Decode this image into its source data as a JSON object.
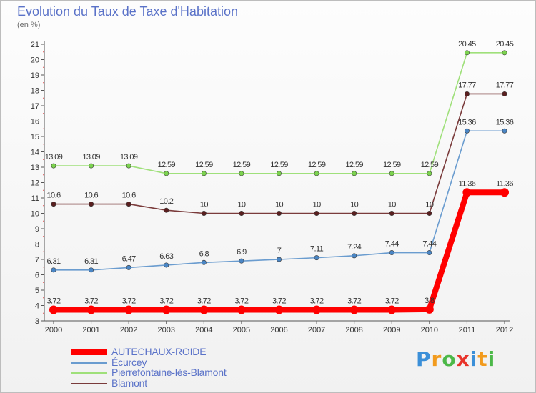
{
  "chart_data": {
    "type": "line",
    "title": "Evolution du Taux de Taxe d'Habitation",
    "subtitle": "(en %)",
    "x": [
      "2000",
      "2001",
      "2002",
      "2003",
      "2004",
      "2005",
      "2006",
      "2007",
      "2008",
      "2009",
      "2010",
      "2011",
      "2012"
    ],
    "ylim": [
      3,
      21
    ],
    "yticks": [
      3,
      4,
      5,
      6,
      7,
      8,
      9,
      10,
      11,
      12,
      13,
      14,
      15,
      16,
      17,
      18,
      19,
      20,
      21
    ],
    "grid": false,
    "legend_position": "bottom-left",
    "series": [
      {
        "name": "AUTECHAUX-ROIDE",
        "color": "#ff0000",
        "marker_color": "#ff0000",
        "values": [
          3.72,
          3.72,
          3.72,
          3.72,
          3.72,
          3.72,
          3.72,
          3.72,
          3.72,
          3.72,
          3.75,
          11.36,
          11.36
        ],
        "labels": [
          "3.72",
          "3.72",
          "3.72",
          "3.72",
          "3.72",
          "3.72",
          "3.72",
          "3.72",
          "3.72",
          "3.72",
          "3.8",
          "11.36",
          "11.36"
        ]
      },
      {
        "name": "Écurcey",
        "color": "#6a9ccf",
        "marker_color": "#4a86c5",
        "values": [
          6.31,
          6.31,
          6.47,
          6.63,
          6.8,
          6.9,
          7,
          7.11,
          7.24,
          7.44,
          7.44,
          15.36,
          15.36
        ],
        "labels": [
          "6.31",
          "6.31",
          "6.47",
          "6.63",
          "6.8",
          "6.9",
          "7",
          "7.11",
          "7.24",
          "7.44",
          "7.44",
          "15.36",
          "15.36"
        ]
      },
      {
        "name": "Pierrefontaine-lès-Blamont",
        "color": "#9fe07a",
        "marker_color": "#7cd34f",
        "values": [
          13.09,
          13.09,
          13.09,
          12.59,
          12.59,
          12.59,
          12.59,
          12.59,
          12.59,
          12.59,
          12.59,
          20.45,
          20.45
        ],
        "labels": [
          "13.09",
          "13.09",
          "13.09",
          "12.59",
          "12.59",
          "12.59",
          "12.59",
          "12.59",
          "12.59",
          "12.59",
          "12.59",
          "20.45",
          "20.45"
        ]
      },
      {
        "name": "Blamont",
        "color": "#7a3b3b",
        "marker_color": "#5a1f1f",
        "values": [
          10.6,
          10.6,
          10.6,
          10.2,
          10,
          10,
          10,
          10,
          10,
          10,
          10,
          17.77,
          17.77
        ],
        "labels": [
          "10.6",
          "10.6",
          "10.6",
          "10.2",
          "10",
          "10",
          "10",
          "10",
          "10",
          "10",
          "10",
          "17.77",
          "17.77"
        ]
      }
    ]
  },
  "logo": {
    "letters": [
      {
        "char": "P",
        "color": "#3b8fd8"
      },
      {
        "char": "r",
        "color": "#f29b1e"
      },
      {
        "char": "o",
        "color": "#4cb848"
      },
      {
        "char": "x",
        "color": "#e8332a"
      },
      {
        "char": "i",
        "color": "#3b8fd8"
      },
      {
        "char": "t",
        "color": "#f29b1e"
      },
      {
        "char": "i",
        "color": "#4cb848"
      }
    ]
  }
}
